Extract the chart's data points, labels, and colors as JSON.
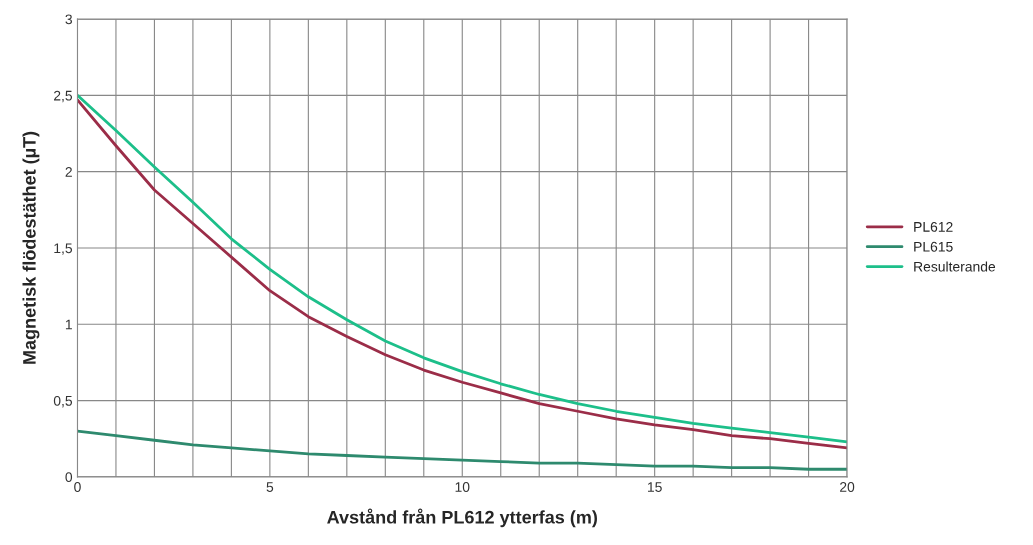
{
  "chart_data": {
    "type": "line",
    "xlabel": "Avstånd från PL612 ytterfas (m)",
    "ylabel": "Magnetisk flödestäthet (µT)",
    "x": [
      0,
      1,
      2,
      3,
      4,
      5,
      6,
      7,
      8,
      9,
      10,
      11,
      12,
      13,
      14,
      15,
      16,
      17,
      18,
      19,
      20
    ],
    "series": [
      {
        "name": "PL612",
        "color": "#9b2d48",
        "values": [
          2.47,
          2.17,
          1.88,
          1.66,
          1.44,
          1.22,
          1.05,
          0.92,
          0.8,
          0.7,
          0.62,
          0.55,
          0.48,
          0.43,
          0.38,
          0.34,
          0.31,
          0.27,
          0.25,
          0.22,
          0.19
        ]
      },
      {
        "name": "PL615",
        "color": "#2e8a6e",
        "values": [
          0.3,
          0.27,
          0.24,
          0.21,
          0.19,
          0.17,
          0.15,
          0.14,
          0.13,
          0.12,
          0.11,
          0.1,
          0.09,
          0.09,
          0.08,
          0.07,
          0.07,
          0.06,
          0.06,
          0.05,
          0.05
        ]
      },
      {
        "name": "Resulterande",
        "color": "#1dbf8a",
        "values": [
          2.5,
          2.27,
          2.03,
          1.8,
          1.56,
          1.36,
          1.18,
          1.03,
          0.89,
          0.78,
          0.69,
          0.61,
          0.54,
          0.48,
          0.43,
          0.39,
          0.35,
          0.32,
          0.29,
          0.26,
          0.23
        ]
      }
    ],
    "xlim": [
      0,
      20
    ],
    "xticks": [
      0,
      {
        "value": 1,
        "label": null
      },
      {
        "value": 2,
        "label": null
      },
      {
        "value": 3,
        "label": null
      },
      {
        "value": 4,
        "label": null
      },
      5,
      {
        "value": 6,
        "label": null
      },
      {
        "value": 7,
        "label": null
      },
      {
        "value": 8,
        "label": null
      },
      {
        "value": 9,
        "label": null
      },
      10,
      {
        "value": 11,
        "label": null
      },
      {
        "value": 12,
        "label": null
      },
      {
        "value": 13,
        "label": null
      },
      {
        "value": 14,
        "label": null
      },
      15,
      {
        "value": 16,
        "label": null
      },
      {
        "value": 17,
        "label": null
      },
      {
        "value": 18,
        "label": null
      },
      {
        "value": 19,
        "label": null
      },
      20
    ],
    "ylim": [
      0,
      3
    ],
    "yticks": [
      0,
      {
        "value": 0.5,
        "label": "0,5"
      },
      1,
      {
        "value": 1.5,
        "label": "1,5"
      },
      2,
      {
        "value": 2.5,
        "label": "2,5"
      },
      3
    ],
    "grid": true,
    "legend": "right",
    "marker": "none",
    "line_style": "solid"
  }
}
